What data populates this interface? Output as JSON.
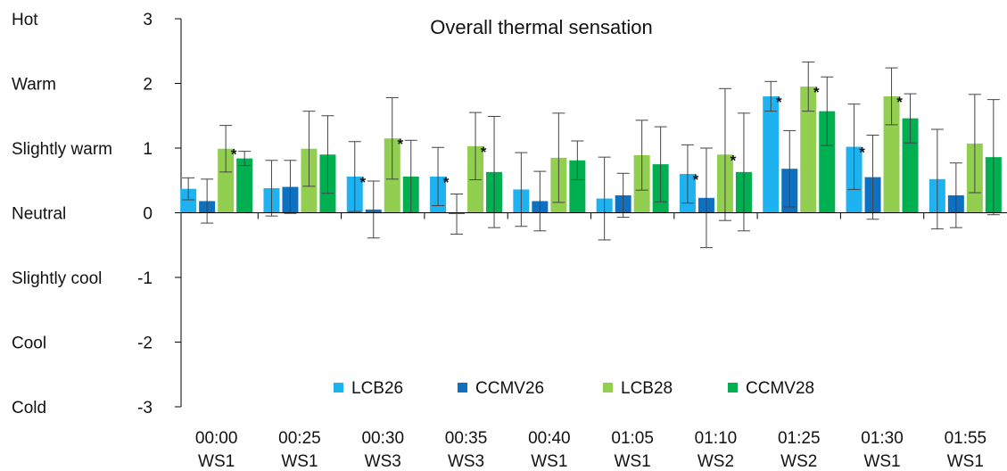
{
  "chart_data": {
    "type": "bar",
    "title": "Overall thermal sensation",
    "xlabel": "",
    "ylabel": "",
    "ylim": [
      -3,
      3
    ],
    "y_ticks": [
      3,
      2,
      1,
      0,
      -1,
      -2,
      -3
    ],
    "y_tick_labels": [
      "3",
      "2",
      "1",
      "0",
      "-1",
      "-2",
      "-3"
    ],
    "y_category_labels": [
      "Hot",
      "Warm",
      "Slightly warm",
      "Neutral",
      "Slightly cool",
      "Cool",
      "Cold"
    ],
    "legend_position": "bottom-right (inside plot)",
    "categories": [
      [
        "00:00",
        "WS1"
      ],
      [
        "00:25",
        "WS1"
      ],
      [
        "00:30",
        "WS3"
      ],
      [
        "00:35",
        "WS3"
      ],
      [
        "00:40",
        "WS1"
      ],
      [
        "01:05",
        "WS1"
      ],
      [
        "01:10",
        "WS2"
      ],
      [
        "01:25",
        "WS2"
      ],
      [
        "01:30",
        "WS1"
      ],
      [
        "01:55",
        "WS1"
      ]
    ],
    "series": [
      {
        "name": "LCB26",
        "color": "#1fb2f0",
        "values": [
          0.37,
          0.38,
          0.56,
          0.56,
          0.36,
          0.22,
          0.6,
          1.8,
          1.02,
          0.52
        ],
        "errors": [
          0.17,
          0.43,
          0.54,
          0.45,
          0.57,
          0.64,
          0.45,
          0.23,
          0.66,
          0.77
        ],
        "significant": [
          false,
          false,
          true,
          true,
          false,
          false,
          true,
          true,
          true,
          false
        ]
      },
      {
        "name": "CCMV26",
        "color": "#0d70c0",
        "values": [
          0.18,
          0.4,
          0.05,
          -0.02,
          0.18,
          0.27,
          0.23,
          0.68,
          0.55,
          0.27
        ],
        "errors": [
          0.34,
          0.41,
          0.44,
          0.31,
          0.46,
          0.34,
          0.77,
          0.59,
          0.65,
          0.5
        ],
        "significant": [
          false,
          false,
          false,
          false,
          false,
          false,
          false,
          false,
          false,
          false
        ]
      },
      {
        "name": "LCB28",
        "color": "#92cf50",
        "values": [
          0.99,
          0.99,
          1.15,
          1.03,
          0.85,
          0.89,
          0.9,
          1.95,
          1.8,
          1.07
        ],
        "errors": [
          0.36,
          0.58,
          0.63,
          0.52,
          0.69,
          0.54,
          1.02,
          0.38,
          0.44,
          0.76
        ],
        "significant": [
          true,
          false,
          true,
          true,
          false,
          false,
          true,
          true,
          true,
          false
        ]
      },
      {
        "name": "CCMV28",
        "color": "#00b050",
        "values": [
          0.84,
          0.9,
          0.56,
          0.63,
          0.81,
          0.75,
          0.63,
          1.57,
          1.46,
          0.86
        ],
        "errors": [
          0.11,
          0.6,
          0.56,
          0.86,
          0.3,
          0.58,
          0.91,
          0.53,
          0.38,
          0.89
        ],
        "significant": [
          false,
          false,
          false,
          false,
          false,
          false,
          false,
          false,
          false,
          false
        ]
      }
    ],
    "significance_marker": "*"
  }
}
